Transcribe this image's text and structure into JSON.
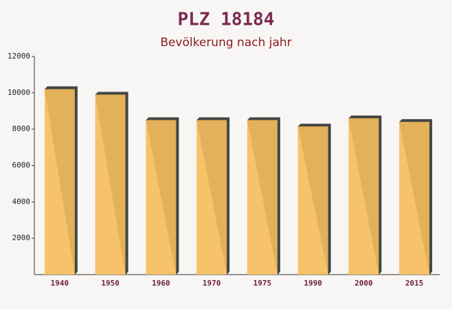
{
  "chart_data": {
    "type": "bar",
    "title": "PLZ 18184",
    "subtitle": "Bevölkerung nach jahr",
    "categories": [
      "1940",
      "1950",
      "1960",
      "1970",
      "1975",
      "1990",
      "2000",
      "2015"
    ],
    "values": [
      10200,
      9900,
      8500,
      8500,
      8500,
      8150,
      8600,
      8400
    ],
    "color": "#f5be5c",
    "ylim": [
      0,
      12000
    ],
    "yticks": [
      2000,
      4000,
      6000,
      8000,
      10000,
      12000
    ]
  }
}
